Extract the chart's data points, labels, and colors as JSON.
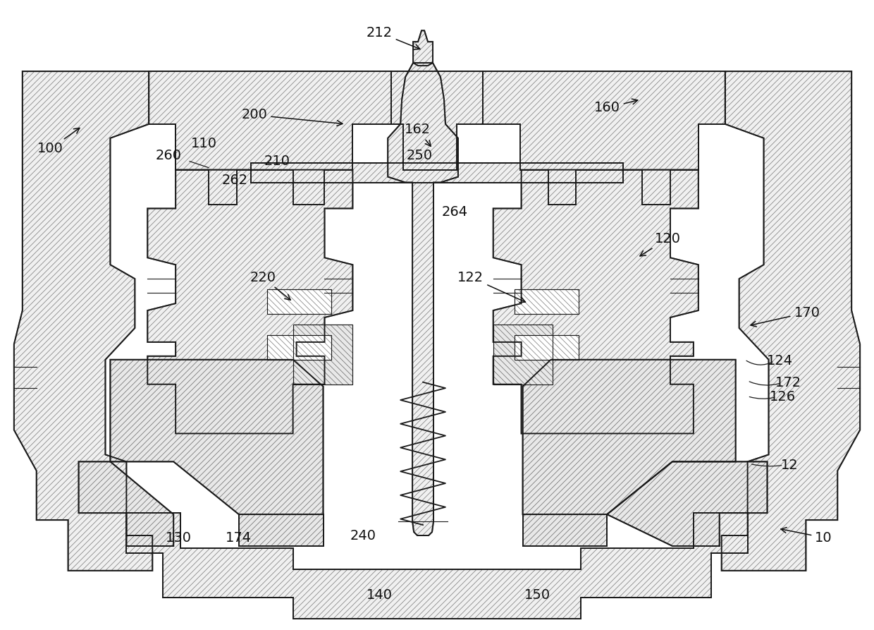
{
  "bg_color": "#ffffff",
  "line_color": "#1a1a1a",
  "label_color": "#111111",
  "label_fontsize": 14,
  "figsize": [
    12.4,
    8.93
  ],
  "dpi": 100,
  "hatch_pattern": "////",
  "hatch_lw": 0.5
}
